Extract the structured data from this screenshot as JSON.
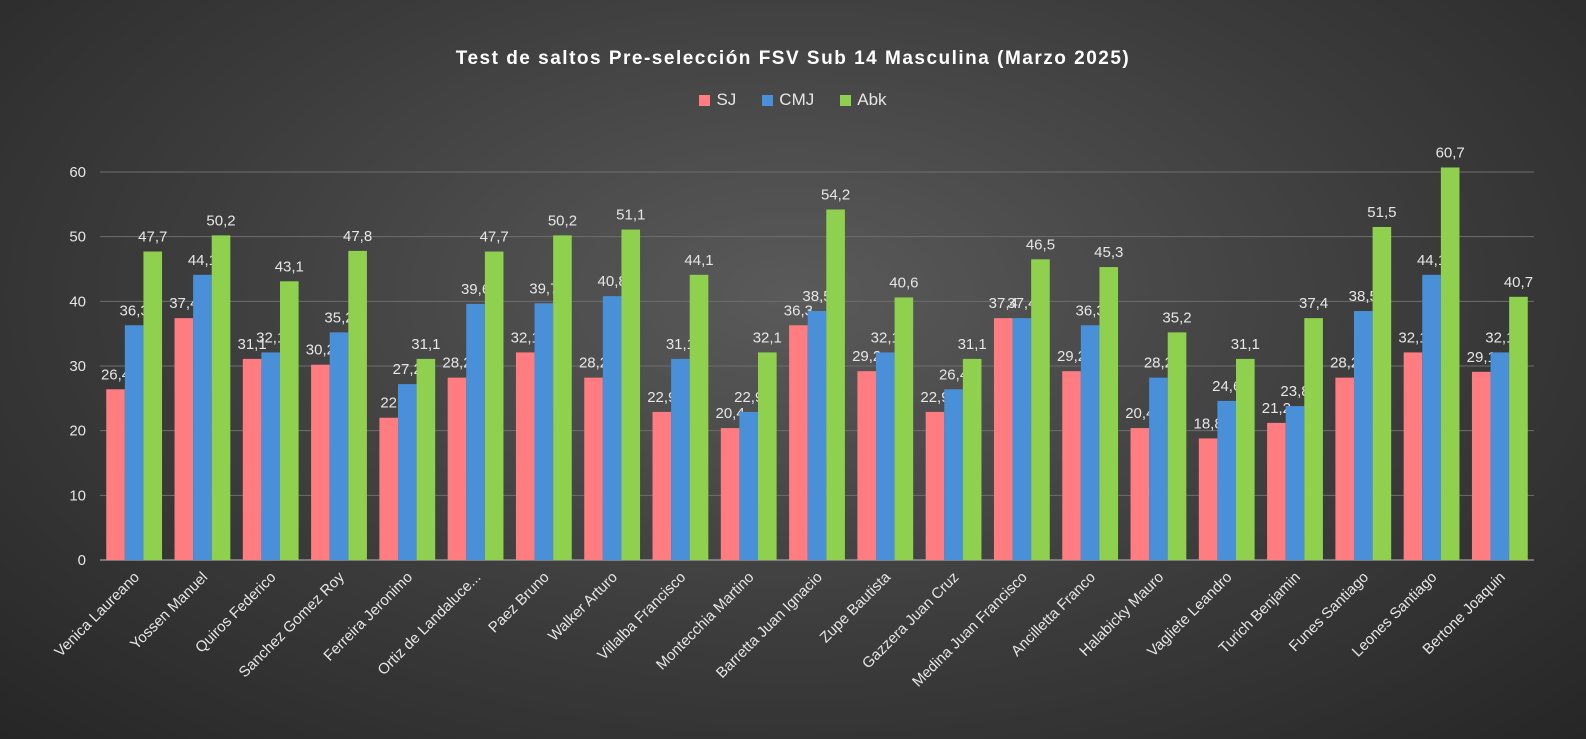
{
  "chart_data": {
    "type": "bar",
    "title": "Test de saltos Pre-selección FSV Sub 14 Masculina (Marzo 2025)",
    "xlabel": "",
    "ylabel": "",
    "ylim": [
      0,
      60
    ],
    "yticks": [
      0,
      10,
      20,
      30,
      40,
      50,
      60
    ],
    "grid": true,
    "legend_position": "top",
    "categories": [
      "Venica Laureano",
      "Yossen Manuel",
      "Quiros Federico",
      "Sanchez Gomez Roy",
      "Ferreira Jeronimo",
      "Ortiz de Landaluce...",
      "Paez Bruno",
      "Walker Arturo",
      "Villalba Francisco",
      "Montecchia Martino",
      "Barretta Juan Ignacio",
      "Zupe Bautista",
      "Gazzera Juan Cruz",
      "Medina Juan Francisco",
      "Ancilletta Franco",
      "Halabicky Mauro",
      "Vagliete Leandro",
      "Turich Benjamin",
      "Funes Santiago",
      "Leones Santiago",
      "Bertone Joaquin"
    ],
    "series": [
      {
        "name": "SJ",
        "color": "#ff7c80",
        "values": [
          26.4,
          37.4,
          31.1,
          30.2,
          22,
          28.2,
          32.1,
          28.2,
          22.9,
          20.4,
          36.3,
          29.2,
          22.9,
          37.4,
          29.2,
          20.4,
          18.8,
          21.2,
          28.2,
          32.1,
          29.1
        ],
        "labels": [
          "26,4",
          "37,4",
          "31,1",
          "30,2",
          "22",
          "28,2",
          "32,1",
          "28,2",
          "22,9",
          "20,4",
          "36,3",
          "29,2",
          "22,9",
          "37,4",
          "29,2",
          "20,4",
          "18,8",
          "21,2",
          "28,2",
          "32,1",
          "29,1"
        ]
      },
      {
        "name": "CMJ",
        "color": "#4a90d9",
        "values": [
          36.3,
          44.1,
          32.1,
          35.2,
          27.2,
          39.6,
          39.7,
          40.8,
          31.1,
          22.9,
          38.5,
          32.1,
          26.4,
          37.4,
          36.3,
          28.2,
          24.6,
          23.8,
          38.5,
          44.1,
          32.1
        ],
        "labels": [
          "36,3",
          "44,1",
          "32,1",
          "35,2",
          "27,2",
          "39,6",
          "39,7",
          "40,8",
          "31,1",
          "22,9",
          "38,5",
          "32,1",
          "26,4",
          "37,4",
          "36,3",
          "28,2",
          "24,6",
          "23,8",
          "38,5",
          "44,1",
          "32,1"
        ]
      },
      {
        "name": "Abk",
        "color": "#8fd14f",
        "values": [
          47.7,
          50.2,
          43.1,
          47.8,
          31.1,
          47.7,
          50.2,
          51.1,
          44.1,
          32.1,
          54.2,
          40.6,
          31.1,
          46.5,
          45.3,
          35.2,
          31.1,
          37.4,
          51.5,
          60.7,
          40.7
        ],
        "labels": [
          "47,7",
          "50,2",
          "43,1",
          "47,8",
          "31,1",
          "47,7",
          "50,2",
          "51,1",
          "44,1",
          "32,1",
          "54,2",
          "40,6",
          "31,1",
          "46,5",
          "45,3",
          "35,2",
          "31,1",
          "37,4",
          "51,5",
          "60,7",
          "40,7"
        ]
      }
    ]
  }
}
